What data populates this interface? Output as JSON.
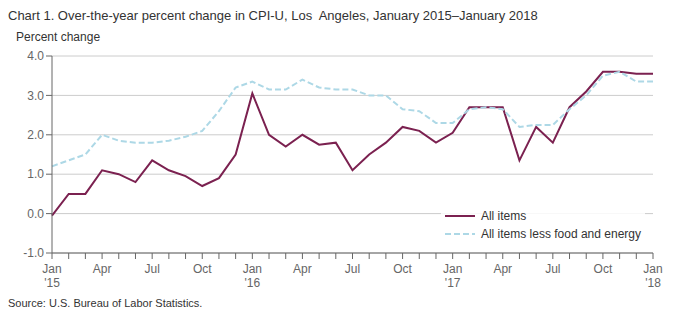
{
  "chart_data": {
    "type": "line",
    "title": "Chart 1. Over-the-year percent change in CPI-U, Los  Angeles, January 2015–January 2018",
    "y_label": "Percent change",
    "source": "Source: U.S. Bureau of Labor Statistics.",
    "categories": [
      "Jan\n'15",
      null,
      null,
      "Apr",
      null,
      null,
      "Jul",
      null,
      null,
      "Oct",
      null,
      null,
      "Jan\n'16",
      null,
      null,
      "Apr",
      null,
      null,
      "Jul",
      null,
      null,
      "Oct",
      null,
      null,
      "Jan\n'17",
      null,
      null,
      "Apr",
      null,
      null,
      "Jul",
      null,
      null,
      "Oct",
      null,
      null,
      "Jan\n'18"
    ],
    "series": [
      {
        "name": "All items",
        "color": "#7b2150",
        "line_style": "solid",
        "values": [
          -0.05,
          0.5,
          0.5,
          1.1,
          1.0,
          0.8,
          1.35,
          1.1,
          0.95,
          0.7,
          0.9,
          1.5,
          3.05,
          2.0,
          1.7,
          2.0,
          1.75,
          1.8,
          1.1,
          1.5,
          1.8,
          2.2,
          2.1,
          1.8,
          2.05,
          2.7,
          2.7,
          2.7,
          1.35,
          2.2,
          1.8,
          2.7,
          3.1,
          3.6,
          3.6,
          3.55,
          3.55
        ]
      },
      {
        "name": "All items less food and energy",
        "color": "#add8e6",
        "line_style": "dashed",
        "values": [
          1.2,
          1.35,
          1.5,
          2.0,
          1.85,
          1.8,
          1.8,
          1.85,
          1.95,
          2.1,
          2.6,
          3.2,
          3.35,
          3.15,
          3.15,
          3.4,
          3.2,
          3.15,
          3.15,
          3.0,
          3.0,
          2.65,
          2.6,
          2.3,
          2.3,
          2.65,
          2.7,
          2.65,
          2.2,
          2.25,
          2.25,
          2.65,
          3.0,
          3.5,
          3.6,
          3.35,
          3.35
        ]
      }
    ],
    "ylim": [
      -1.0,
      4.0
    ],
    "yticks": [
      {
        "value": -1.0,
        "label": "-1.0"
      },
      {
        "value": 0.0,
        "label": "0.0"
      },
      {
        "value": 1.0,
        "label": "1.0"
      },
      {
        "value": 2.0,
        "label": "2.0"
      },
      {
        "value": 3.0,
        "label": "3.0"
      },
      {
        "value": 4.0,
        "label": "4.0"
      }
    ],
    "grid": true,
    "legend": "lower right"
  }
}
